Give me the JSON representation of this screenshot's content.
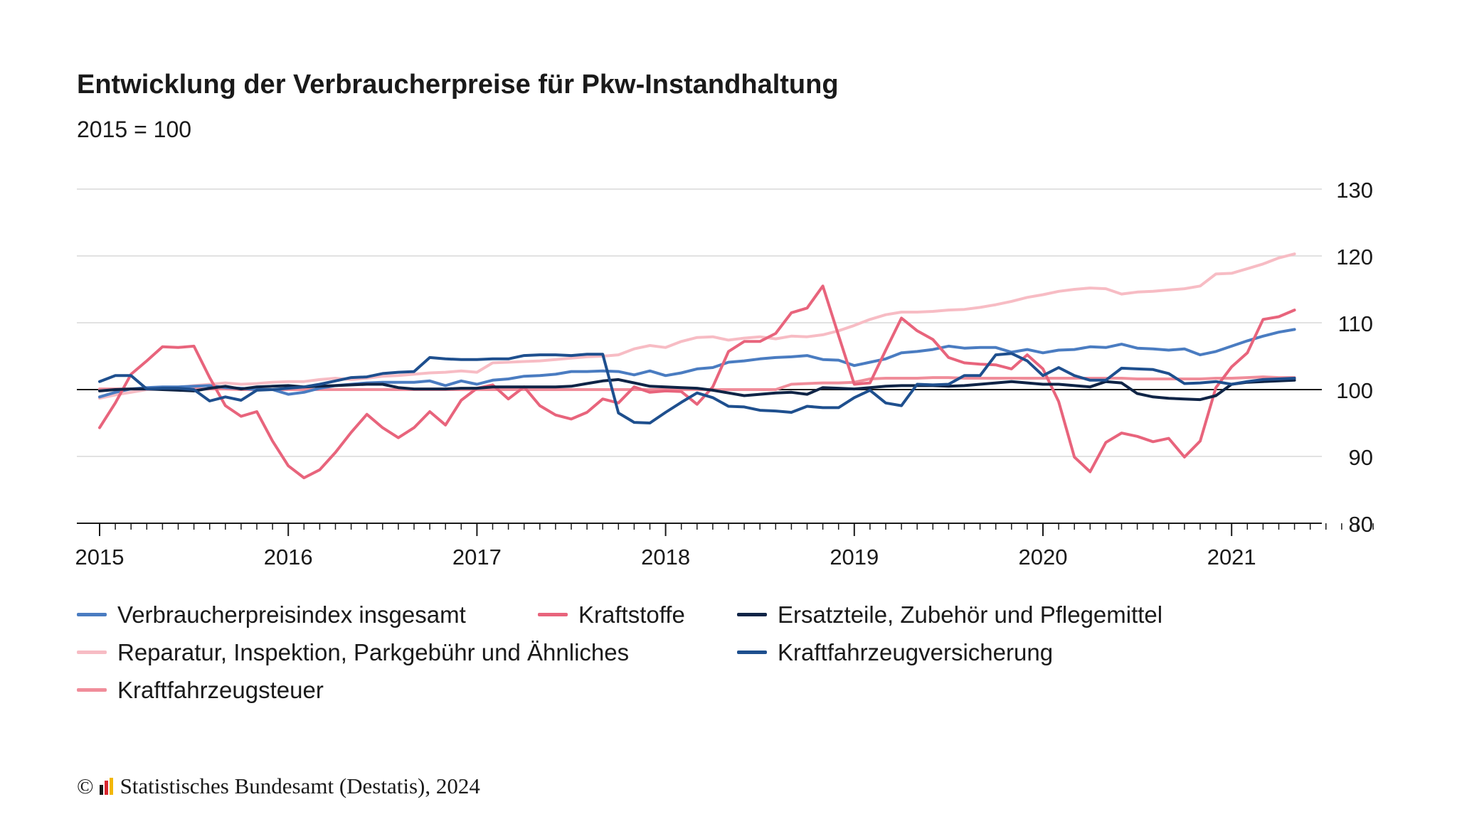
{
  "title": "Entwicklung der Verbraucherpreise für Pkw-Instandhaltung",
  "subtitle": "2015 = 100",
  "source": "Statistisches Bundesamt (Destatis), 2024",
  "copyright": "©",
  "chart_data": {
    "type": "line",
    "title": "Entwicklung der Verbraucherpreise für Pkw-Instandhaltung",
    "subtitle": "2015 = 100",
    "xlabel": "",
    "ylabel": "",
    "x_start": "2015-01",
    "x_end": "2021-05",
    "frequency": "monthly",
    "xlim": [
      "2015-01",
      "2021-09"
    ],
    "ylim": [
      80,
      130
    ],
    "yticks": [
      80,
      90,
      100,
      110,
      120,
      130
    ],
    "xtick_labels": [
      "2015",
      "2016",
      "2017",
      "2018",
      "2019",
      "2020",
      "2021"
    ],
    "reference_line": 100,
    "grid": true,
    "legend_position": "bottom",
    "series": [
      {
        "name": "Verbraucherpreisindex insgesamt",
        "color": "#4a7cc1",
        "values": [
          98.9,
          99.6,
          100.1,
          100.3,
          100.4,
          100.4,
          100.5,
          100.6,
          100.3,
          100.2,
          100.0,
          100.0,
          99.3,
          99.6,
          100.2,
          100.6,
          100.8,
          101.0,
          101.1,
          101.1,
          101.1,
          101.3,
          100.6,
          101.3,
          100.8,
          101.4,
          101.6,
          102.0,
          102.1,
          102.3,
          102.7,
          102.7,
          102.8,
          102.7,
          102.2,
          102.8,
          102.1,
          102.5,
          103.1,
          103.3,
          104.1,
          104.3,
          104.6,
          104.8,
          104.9,
          105.1,
          104.5,
          104.4,
          103.6,
          104.1,
          104.6,
          105.5,
          105.7,
          106.0,
          106.5,
          106.2,
          106.3,
          106.3,
          105.6,
          106.0,
          105.5,
          105.9,
          106.0,
          106.4,
          106.3,
          106.8,
          106.2,
          106.1,
          105.9,
          106.1,
          105.2,
          105.7,
          106.5,
          107.3,
          108.0,
          108.6,
          109.0
        ]
      },
      {
        "name": "Kraftstoffe",
        "color": "#e8647c",
        "values": [
          94.3,
          98.0,
          102.3,
          104.3,
          106.4,
          106.3,
          106.5,
          101.8,
          97.6,
          96.0,
          96.7,
          92.3,
          88.6,
          86.8,
          88.0,
          90.6,
          93.6,
          96.3,
          94.3,
          92.8,
          94.3,
          96.7,
          94.7,
          98.4,
          100.2,
          100.7,
          98.6,
          100.4,
          97.6,
          96.2,
          95.6,
          96.6,
          98.6,
          98.0,
          100.4,
          99.6,
          99.8,
          99.7,
          97.8,
          100.4,
          105.7,
          107.2,
          107.2,
          108.4,
          111.5,
          112.2,
          115.5,
          108.1,
          100.8,
          101.0,
          105.9,
          110.7,
          108.8,
          107.5,
          104.8,
          104.0,
          103.8,
          103.7,
          103.1,
          105.2,
          103.1,
          98.2,
          89.9,
          87.7,
          92.1,
          93.5,
          93.0,
          92.2,
          92.7,
          89.9,
          92.3,
          100.3,
          103.4,
          105.5,
          110.5,
          110.9,
          111.9
        ]
      },
      {
        "name": "Ersatzteile, Zubehör und Pflegemittel",
        "color": "#0f2446",
        "values": [
          99.8,
          100.0,
          100.1,
          100.1,
          100.0,
          99.9,
          99.8,
          100.2,
          100.5,
          100.1,
          100.4,
          100.5,
          100.6,
          100.4,
          100.5,
          100.6,
          100.7,
          100.8,
          100.8,
          100.3,
          100.1,
          100.1,
          100.1,
          100.2,
          100.2,
          100.4,
          100.4,
          100.4,
          100.4,
          100.4,
          100.5,
          100.9,
          101.3,
          101.5,
          101.0,
          100.5,
          100.4,
          100.3,
          100.2,
          99.9,
          99.5,
          99.1,
          99.3,
          99.5,
          99.6,
          99.3,
          100.3,
          100.2,
          100.1,
          100.3,
          100.5,
          100.6,
          100.6,
          100.6,
          100.5,
          100.6,
          100.8,
          101.0,
          101.2,
          101.0,
          100.8,
          100.8,
          100.6,
          100.4,
          101.2,
          101.0,
          99.4,
          98.9,
          98.7,
          98.6,
          98.5,
          99.1,
          100.8,
          101.1,
          101.2,
          101.3,
          101.4
        ]
      },
      {
        "name": "Reparatur, Inspektion, Parkgebühr und Ähnliches",
        "color": "#f7bcc4",
        "values": [
          98.7,
          99.2,
          99.6,
          100.0,
          100.1,
          100.3,
          100.6,
          100.8,
          101.0,
          100.8,
          100.9,
          101.1,
          101.2,
          101.2,
          101.5,
          101.7,
          101.5,
          101.7,
          102.0,
          102.1,
          102.3,
          102.5,
          102.6,
          102.8,
          102.6,
          104.0,
          104.1,
          104.2,
          104.3,
          104.5,
          104.7,
          104.9,
          105.0,
          105.2,
          106.1,
          106.6,
          106.3,
          107.2,
          107.8,
          107.9,
          107.4,
          107.7,
          107.9,
          107.6,
          108.0,
          107.9,
          108.2,
          108.8,
          109.6,
          110.5,
          111.2,
          111.6,
          111.6,
          111.7,
          111.9,
          112.0,
          112.3,
          112.7,
          113.2,
          113.8,
          114.2,
          114.7,
          115.0,
          115.2,
          115.1,
          114.3,
          114.6,
          114.7,
          114.9,
          115.1,
          115.5,
          117.3,
          117.4,
          118.1,
          118.8,
          119.7,
          120.3
        ]
      },
      {
        "name": "Kraftfahrzeugversicherung",
        "color": "#1e4f8e",
        "values": [
          101.2,
          102.1,
          102.1,
          100.1,
          100.2,
          100.2,
          100.0,
          98.3,
          98.9,
          98.4,
          99.9,
          100.0,
          100.2,
          100.4,
          100.8,
          101.3,
          101.8,
          101.9,
          102.4,
          102.6,
          102.7,
          104.8,
          104.6,
          104.5,
          104.5,
          104.6,
          104.6,
          105.1,
          105.2,
          105.2,
          105.1,
          105.3,
          105.3,
          96.5,
          95.1,
          95.0,
          96.6,
          98.1,
          99.5,
          98.8,
          97.5,
          97.4,
          96.9,
          96.8,
          96.6,
          97.5,
          97.3,
          97.3,
          98.8,
          99.9,
          98.0,
          97.6,
          100.8,
          100.7,
          100.8,
          102.1,
          102.1,
          105.2,
          105.4,
          104.3,
          102.1,
          103.3,
          102.1,
          101.4,
          101.4,
          103.2,
          103.1,
          103.0,
          102.4,
          100.9,
          101.0,
          101.2,
          100.8,
          101.2,
          101.5,
          101.6,
          101.7
        ]
      },
      {
        "name": "Kraftfahrzeugsteuer",
        "color": "#f08d9a",
        "values": [
          100.1,
          100.1,
          100.1,
          100.1,
          100.1,
          100.0,
          100.1,
          100.1,
          100.1,
          100.0,
          100.0,
          100.0,
          100.0,
          100.0,
          100.0,
          100.0,
          100.0,
          100.0,
          100.0,
          100.0,
          100.0,
          100.0,
          100.0,
          100.0,
          100.0,
          100.0,
          100.0,
          100.0,
          100.0,
          100.0,
          100.0,
          100.0,
          100.0,
          100.0,
          100.0,
          100.0,
          100.0,
          100.0,
          100.0,
          100.0,
          100.0,
          100.0,
          100.0,
          100.0,
          100.8,
          100.9,
          101.0,
          101.0,
          101.1,
          101.6,
          101.7,
          101.7,
          101.7,
          101.8,
          101.8,
          101.7,
          101.7,
          101.7,
          101.7,
          101.7,
          101.7,
          101.7,
          101.7,
          101.7,
          101.7,
          101.7,
          101.6,
          101.6,
          101.6,
          101.6,
          101.6,
          101.7,
          101.7,
          101.8,
          101.9,
          101.8,
          101.8
        ]
      }
    ]
  }
}
